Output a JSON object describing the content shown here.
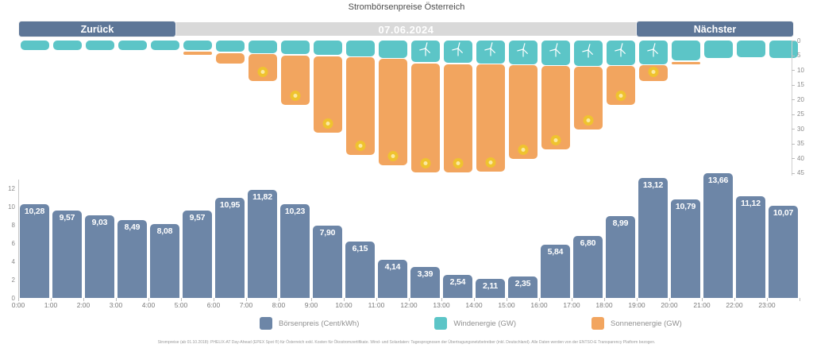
{
  "header": {
    "title": "Strombörsenpreise Österreich"
  },
  "nav": {
    "prev_label": "Zurück",
    "date": "07.06.2024",
    "next_label": "Nächster"
  },
  "legend": [
    {
      "label": "Börsenpreis (Cent/kWh)",
      "color": "#6d86a7"
    },
    {
      "label": "Windenergie (GW)",
      "color": "#5cc5c7"
    },
    {
      "label": "Sonnenenergie (GW)",
      "color": "#f2a55f"
    }
  ],
  "footer": {
    "disclaimer": "Strompreise (ab 01.10.2018): PHELIX-AT Day-Ahead (EPEX Spot ®) für Österreich exkl. Kosten für Ökostromzertifikate. Wind- und Solardaten: Tagesprognosen der Übertragungsnetzbetreiber (inkl. Deutschland). Alle Daten werden von der ENTSO-E Transparency Platform bezogen."
  },
  "colors": {
    "price_bar": "#6d86a7",
    "wind_bar": "#5cc5c7",
    "solar_bar": "#f2a55f",
    "button": "#5d7697",
    "nav_track": "#d9d9d9",
    "sun_icon": "#efc32f",
    "turbine_icon": "#ffffff"
  },
  "chart_data": [
    {
      "type": "bar",
      "name": "Wind- und Sonnenenergie",
      "layout": "stacked columns hanging from top edge (inverted right axis, GW)",
      "x": [
        "0:00",
        "1:00",
        "2:00",
        "3:00",
        "4:00",
        "5:00",
        "6:00",
        "7:00",
        "8:00",
        "9:00",
        "10:00",
        "11:00",
        "12:00",
        "13:00",
        "14:00",
        "15:00",
        "16:00",
        "17:00",
        "18:00",
        "19:00",
        "20:00",
        "21:00",
        "22:00",
        "23:00"
      ],
      "series": [
        {
          "name": "Windenergie (GW)",
          "color": "#5cc5c7",
          "values": [
            3.3,
            3.3,
            3.3,
            3.3,
            3.3,
            3.3,
            3.8,
            4.2,
            4.7,
            4.9,
            5.3,
            5.9,
            7.4,
            7.6,
            7.8,
            8.0,
            8.3,
            8.6,
            8.3,
            8.0,
            6.8,
            5.9,
            5.6,
            5.9
          ]
        },
        {
          "name": "Sonnenenergie (GW)",
          "color": "#f2a55f",
          "values": [
            0,
            0,
            0,
            0,
            0,
            1.1,
            3.6,
            9.2,
            16.9,
            26.1,
            33.3,
            36.2,
            37.1,
            36.9,
            36.3,
            32.0,
            28.2,
            21.2,
            13.1,
            5.4,
            0.9,
            0,
            0,
            0
          ]
        }
      ],
      "y_axis": {
        "side": "right",
        "inverted": true,
        "ticks": [
          0,
          5,
          10,
          15,
          20,
          25,
          30,
          35,
          40,
          45
        ],
        "unit": "GW",
        "grid": false
      },
      "icons": {
        "wind_turbine_hours": [
          12,
          13,
          14,
          15,
          16,
          17,
          18,
          19
        ],
        "sun_hours": [
          7,
          8,
          9,
          10,
          11,
          12,
          13,
          14,
          15,
          16,
          17,
          18,
          19
        ]
      }
    },
    {
      "type": "bar",
      "name": "Börsenpreis (Cent/kWh)",
      "categories": [
        "0:00",
        "1:00",
        "2:00",
        "3:00",
        "4:00",
        "5:00",
        "6:00",
        "7:00",
        "8:00",
        "9:00",
        "10:00",
        "11:00",
        "12:00",
        "13:00",
        "14:00",
        "15:00",
        "16:00",
        "17:00",
        "18:00",
        "19:00",
        "20:00",
        "21:00",
        "22:00",
        "23:00"
      ],
      "values": [
        10.28,
        9.57,
        9.03,
        8.49,
        8.08,
        9.57,
        10.95,
        11.82,
        10.23,
        7.9,
        6.15,
        4.14,
        3.39,
        2.54,
        2.11,
        2.35,
        5.84,
        6.8,
        8.99,
        13.12,
        10.79,
        13.66,
        11.12,
        10.07
      ],
      "labels": [
        "10,28",
        "9,57",
        "9,03",
        "8,49",
        "8,08",
        "9,57",
        "10,95",
        "11,82",
        "10,23",
        "7,90",
        "6,15",
        "4,14",
        "3,39",
        "2,54",
        "2,11",
        "2,35",
        "5,84",
        "6,80",
        "8,99",
        "13,12",
        "10,79",
        "13,66",
        "11,12",
        "10,07"
      ],
      "y_axis": {
        "side": "left",
        "inverted": false,
        "ticks": [
          0,
          2,
          4,
          6,
          8,
          10,
          12
        ],
        "unit": "Cent/kWh",
        "grid": false
      },
      "bar_color": "#6d86a7"
    }
  ]
}
